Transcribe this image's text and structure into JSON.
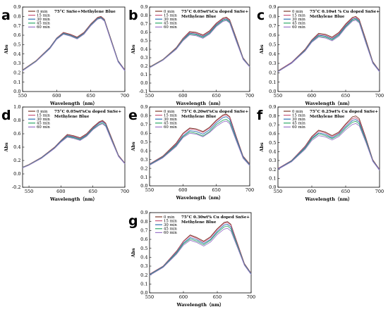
{
  "colors": {
    "0 min": "#7a3a2a",
    "15 min": "#c9567a",
    "30 min": "#2e6fb2",
    "45 min": "#2ea86a",
    "60 min": "#9a74c8"
  },
  "chart_data": [
    {
      "type": "line",
      "panel": "a",
      "title": "75°C SnSe+Methylene Blue",
      "title_lines": [
        "75°C SnSe+Methylene Blue"
      ],
      "xlabel": "Wavelength（nm）",
      "ylabel": "Abs",
      "xlim": [
        550,
        700
      ],
      "ylim": [
        0.0,
        0.9
      ],
      "xticks": [
        550,
        600,
        650,
        700
      ],
      "yticks": [
        0.0,
        0.1,
        0.2,
        0.3,
        0.4,
        0.5,
        0.6,
        0.7,
        0.8,
        0.9
      ],
      "ytick_labels": [
        "0.0",
        "0.1",
        "0.2",
        "0.3",
        "0.4",
        "0.5",
        "0.6",
        "0.7",
        "0.8",
        "0.9"
      ],
      "legend_position": "top-left",
      "x": [
        550,
        570,
        590,
        600,
        610,
        620,
        630,
        640,
        650,
        660,
        665,
        670,
        680,
        690,
        700
      ],
      "series": [
        {
          "name": "0 min",
          "values": [
            0.23,
            0.33,
            0.47,
            0.57,
            0.63,
            0.61,
            0.58,
            0.63,
            0.72,
            0.79,
            0.8,
            0.77,
            0.55,
            0.33,
            0.23
          ]
        },
        {
          "name": "15 min",
          "values": [
            0.23,
            0.33,
            0.47,
            0.57,
            0.625,
            0.605,
            0.575,
            0.625,
            0.715,
            0.785,
            0.795,
            0.765,
            0.545,
            0.33,
            0.23
          ]
        },
        {
          "name": "30 min",
          "values": [
            0.225,
            0.325,
            0.465,
            0.565,
            0.62,
            0.6,
            0.57,
            0.62,
            0.71,
            0.78,
            0.79,
            0.76,
            0.54,
            0.325,
            0.225
          ]
        },
        {
          "name": "45 min",
          "values": [
            0.225,
            0.325,
            0.46,
            0.56,
            0.615,
            0.595,
            0.565,
            0.615,
            0.705,
            0.775,
            0.785,
            0.755,
            0.535,
            0.32,
            0.22
          ]
        },
        {
          "name": "60 min",
          "values": [
            0.22,
            0.32,
            0.455,
            0.555,
            0.61,
            0.59,
            0.56,
            0.61,
            0.7,
            0.77,
            0.78,
            0.75,
            0.53,
            0.315,
            0.22
          ]
        }
      ]
    },
    {
      "type": "line",
      "panel": "b",
      "title": "75°C 0.05wt%Cu doped SnSe+ Methylene Blue",
      "title_lines": [
        "75°C 0.05wt%Cu doped SnSe+",
        "Methylene Blue"
      ],
      "xlabel": "Wavelength（nm）",
      "ylabel": "Abs",
      "xlim": [
        550,
        700
      ],
      "ylim": [
        -0.1,
        0.9
      ],
      "xticks": [
        550,
        600,
        650,
        700
      ],
      "yticks": [
        -0.1,
        0.0,
        0.1,
        0.2,
        0.3,
        0.4,
        0.5,
        0.6,
        0.7,
        0.8,
        0.9
      ],
      "ytick_labels": [
        "-0.1",
        "0.0",
        "0.1",
        "0.2",
        "0.3",
        "0.4",
        "0.5",
        "0.6",
        "0.7",
        "0.8",
        "0.9"
      ],
      "legend_position": "top-left",
      "x": [
        550,
        570,
        590,
        600,
        610,
        620,
        630,
        640,
        650,
        660,
        665,
        670,
        680,
        690,
        700
      ],
      "series": [
        {
          "name": "0 min",
          "values": [
            0.19,
            0.28,
            0.42,
            0.53,
            0.61,
            0.6,
            0.57,
            0.62,
            0.71,
            0.77,
            0.78,
            0.75,
            0.53,
            0.3,
            0.2
          ]
        },
        {
          "name": "15 min",
          "values": [
            0.19,
            0.28,
            0.415,
            0.525,
            0.6,
            0.59,
            0.56,
            0.61,
            0.7,
            0.76,
            0.77,
            0.74,
            0.52,
            0.295,
            0.2
          ]
        },
        {
          "name": "30 min",
          "values": [
            0.185,
            0.275,
            0.41,
            0.515,
            0.59,
            0.58,
            0.55,
            0.6,
            0.69,
            0.75,
            0.76,
            0.73,
            0.51,
            0.29,
            0.195
          ]
        },
        {
          "name": "45 min",
          "values": [
            0.185,
            0.275,
            0.405,
            0.51,
            0.58,
            0.57,
            0.54,
            0.59,
            0.68,
            0.74,
            0.75,
            0.72,
            0.5,
            0.285,
            0.195
          ]
        },
        {
          "name": "60 min",
          "values": [
            0.18,
            0.27,
            0.4,
            0.5,
            0.57,
            0.56,
            0.53,
            0.58,
            0.67,
            0.73,
            0.74,
            0.71,
            0.49,
            0.28,
            0.19
          ]
        }
      ]
    },
    {
      "type": "line",
      "panel": "c",
      "title": "75°C 0.10wt % Cu doped SnSe+ Methylene Blue",
      "title_lines": [
        "75°C 0.10wt % Cu doped SnSe+",
        "Methylene Blue"
      ],
      "xlabel": "Wavelength（nm）",
      "ylabel": "Abs",
      "xlim": [
        550,
        700
      ],
      "ylim": [
        0.0,
        0.9
      ],
      "xticks": [
        550,
        600,
        650,
        700
      ],
      "yticks": [
        0.0,
        0.1,
        0.2,
        0.3,
        0.4,
        0.5,
        0.6,
        0.7,
        0.8,
        0.9
      ],
      "ytick_labels": [
        "0.0",
        "0.1",
        "0.2",
        "0.3",
        "0.4",
        "0.5",
        "0.6",
        "0.7",
        "0.8",
        "0.9"
      ],
      "legend_position": "top-left",
      "x": [
        550,
        570,
        590,
        600,
        610,
        620,
        630,
        640,
        650,
        660,
        665,
        670,
        680,
        690,
        700
      ],
      "series": [
        {
          "name": "0 min",
          "values": [
            0.22,
            0.31,
            0.45,
            0.55,
            0.62,
            0.61,
            0.58,
            0.63,
            0.72,
            0.79,
            0.8,
            0.77,
            0.55,
            0.32,
            0.22
          ]
        },
        {
          "name": "15 min",
          "values": [
            0.22,
            0.31,
            0.445,
            0.545,
            0.61,
            0.6,
            0.57,
            0.62,
            0.71,
            0.78,
            0.79,
            0.76,
            0.54,
            0.315,
            0.22
          ]
        },
        {
          "name": "30 min",
          "values": [
            0.215,
            0.305,
            0.44,
            0.54,
            0.6,
            0.59,
            0.56,
            0.61,
            0.7,
            0.77,
            0.78,
            0.75,
            0.53,
            0.31,
            0.215
          ]
        },
        {
          "name": "45 min",
          "values": [
            0.215,
            0.3,
            0.435,
            0.53,
            0.59,
            0.58,
            0.55,
            0.6,
            0.69,
            0.76,
            0.77,
            0.74,
            0.52,
            0.305,
            0.21
          ]
        },
        {
          "name": "60 min",
          "values": [
            0.21,
            0.3,
            0.43,
            0.525,
            0.58,
            0.57,
            0.54,
            0.59,
            0.68,
            0.75,
            0.76,
            0.73,
            0.51,
            0.3,
            0.21
          ]
        }
      ]
    },
    {
      "type": "line",
      "panel": "d",
      "title": "75°C 0.05wt%Cu doped SnSe+ Methylene Blue",
      "title_lines": [
        "75°C 0.05wt%Cu doped SnSe+",
        "Methylene Blue"
      ],
      "xlabel": "Wavelength（nm）",
      "ylabel": "Abs",
      "xlim": [
        540,
        700
      ],
      "ylim": [
        -0.2,
        1.0
      ],
      "xticks": [
        550,
        600,
        650,
        700
      ],
      "yticks": [
        -0.2,
        0.0,
        0.2,
        0.4,
        0.6,
        0.8,
        1.0
      ],
      "ytick_labels": [
        "-0.2",
        "0.0",
        "0.2",
        "0.4",
        "0.6",
        "0.8",
        "1.0"
      ],
      "legend_position": "top-left",
      "x": [
        540,
        550,
        570,
        590,
        600,
        610,
        620,
        630,
        640,
        650,
        660,
        665,
        670,
        680,
        690,
        700
      ],
      "series": [
        {
          "name": "0 min",
          "values": [
            0.1,
            0.14,
            0.25,
            0.4,
            0.5,
            0.59,
            0.57,
            0.54,
            0.6,
            0.7,
            0.78,
            0.8,
            0.76,
            0.52,
            0.28,
            0.16
          ]
        },
        {
          "name": "15 min",
          "values": [
            0.1,
            0.14,
            0.25,
            0.395,
            0.495,
            0.58,
            0.56,
            0.53,
            0.59,
            0.69,
            0.77,
            0.79,
            0.75,
            0.51,
            0.275,
            0.16
          ]
        },
        {
          "name": "30 min",
          "values": [
            0.095,
            0.135,
            0.245,
            0.39,
            0.49,
            0.57,
            0.55,
            0.52,
            0.58,
            0.68,
            0.76,
            0.78,
            0.74,
            0.5,
            0.27,
            0.155
          ]
        },
        {
          "name": "45 min",
          "values": [
            0.095,
            0.135,
            0.24,
            0.385,
            0.48,
            0.56,
            0.54,
            0.51,
            0.57,
            0.67,
            0.74,
            0.76,
            0.72,
            0.49,
            0.265,
            0.15
          ]
        },
        {
          "name": "60 min",
          "values": [
            0.09,
            0.13,
            0.235,
            0.38,
            0.475,
            0.55,
            0.53,
            0.5,
            0.56,
            0.66,
            0.73,
            0.75,
            0.71,
            0.48,
            0.26,
            0.15
          ]
        }
      ]
    },
    {
      "type": "line",
      "panel": "e",
      "title": "75°C 0.20wt%Cu doped SnSe+ Methylene Blue",
      "title_lines": [
        "75°C 0.20wt%Cu doped SnSe+",
        "Methylene Blue"
      ],
      "xlabel": "Wavelength（nm）",
      "ylabel": "Abs",
      "xlim": [
        550,
        700
      ],
      "ylim": [
        0.0,
        0.9
      ],
      "xticks": [
        550,
        600,
        650,
        700
      ],
      "yticks": [
        0.0,
        0.1,
        0.2,
        0.3,
        0.4,
        0.5,
        0.6,
        0.7,
        0.8,
        0.9
      ],
      "ytick_labels": [
        "0.0",
        "0.1",
        "0.2",
        "0.3",
        "0.4",
        "0.5",
        "0.6",
        "0.7",
        "0.8",
        "0.9"
      ],
      "legend_position": "top-left",
      "x": [
        550,
        570,
        590,
        600,
        610,
        620,
        630,
        640,
        650,
        660,
        665,
        670,
        680,
        690,
        700
      ],
      "series": [
        {
          "name": "0 min",
          "values": [
            0.25,
            0.34,
            0.49,
            0.6,
            0.66,
            0.65,
            0.62,
            0.67,
            0.75,
            0.81,
            0.82,
            0.79,
            0.56,
            0.34,
            0.25
          ]
        },
        {
          "name": "15 min",
          "values": [
            0.25,
            0.335,
            0.48,
            0.59,
            0.65,
            0.64,
            0.61,
            0.66,
            0.74,
            0.8,
            0.81,
            0.78,
            0.55,
            0.335,
            0.245
          ]
        },
        {
          "name": "30 min",
          "values": [
            0.245,
            0.33,
            0.47,
            0.57,
            0.63,
            0.62,
            0.59,
            0.64,
            0.72,
            0.78,
            0.79,
            0.76,
            0.54,
            0.33,
            0.24
          ]
        },
        {
          "name": "45 min",
          "values": [
            0.24,
            0.325,
            0.46,
            0.56,
            0.615,
            0.6,
            0.57,
            0.62,
            0.7,
            0.75,
            0.76,
            0.73,
            0.52,
            0.32,
            0.235
          ]
        },
        {
          "name": "60 min",
          "values": [
            0.235,
            0.32,
            0.45,
            0.55,
            0.6,
            0.59,
            0.56,
            0.61,
            0.68,
            0.73,
            0.74,
            0.71,
            0.51,
            0.315,
            0.23
          ]
        }
      ]
    },
    {
      "type": "line",
      "panel": "f",
      "title": "75°C 0.25wt% Cu doped SnSe+ Methylene Blue",
      "title_lines": [
        "75°C 0.25wt% Cu doped SnSe+",
        "Methylene Blue"
      ],
      "xlabel": "Wavelength（nm）",
      "ylabel": "Abs",
      "xlim": [
        550,
        700
      ],
      "ylim": [
        0.0,
        0.9
      ],
      "xticks": [
        550,
        600,
        650,
        700
      ],
      "yticks": [
        0.0,
        0.1,
        0.2,
        0.3,
        0.4,
        0.5,
        0.6,
        0.7,
        0.8,
        0.9
      ],
      "ytick_labels": [
        "0.0",
        "0.1",
        "0.2",
        "0.3",
        "0.4",
        "0.5",
        "0.6",
        "0.7",
        "0.8",
        "0.9"
      ],
      "legend_position": "top-left",
      "x": [
        550,
        570,
        590,
        600,
        610,
        620,
        630,
        640,
        650,
        660,
        665,
        670,
        680,
        690,
        700
      ],
      "series": [
        {
          "name": "0 min",
          "values": [
            0.21,
            0.3,
            0.46,
            0.57,
            0.64,
            0.62,
            0.58,
            0.62,
            0.71,
            0.79,
            0.8,
            0.77,
            0.55,
            0.31,
            0.2
          ]
        },
        {
          "name": "15 min",
          "values": [
            0.21,
            0.3,
            0.455,
            0.56,
            0.63,
            0.61,
            0.57,
            0.61,
            0.7,
            0.77,
            0.78,
            0.75,
            0.54,
            0.305,
            0.2
          ]
        },
        {
          "name": "30 min",
          "values": [
            0.205,
            0.295,
            0.445,
            0.55,
            0.61,
            0.595,
            0.555,
            0.6,
            0.68,
            0.75,
            0.76,
            0.73,
            0.53,
            0.3,
            0.195
          ]
        },
        {
          "name": "45 min",
          "values": [
            0.2,
            0.29,
            0.435,
            0.54,
            0.6,
            0.58,
            0.545,
            0.585,
            0.665,
            0.73,
            0.74,
            0.71,
            0.515,
            0.295,
            0.19
          ]
        },
        {
          "name": "60 min",
          "values": [
            0.2,
            0.285,
            0.425,
            0.525,
            0.58,
            0.565,
            0.53,
            0.57,
            0.645,
            0.705,
            0.715,
            0.69,
            0.5,
            0.29,
            0.19
          ]
        }
      ]
    },
    {
      "type": "line",
      "panel": "g",
      "title": "75°C 0.30wt% Cu doped SnSe+ Methylene Blue",
      "title_lines": [
        "75°C 0.30wt% Cu doped SnSe+",
        "Methylene Blue"
      ],
      "xlabel": "Wavelength（nm）",
      "ylabel": "Abs",
      "xlim": [
        550,
        700
      ],
      "ylim": [
        0.0,
        0.9
      ],
      "xticks": [
        550,
        600,
        650,
        700
      ],
      "yticks": [
        0.0,
        0.1,
        0.2,
        0.3,
        0.4,
        0.5,
        0.6,
        0.7,
        0.8,
        0.9
      ],
      "ytick_labels": [
        "0.0",
        "0.1",
        "0.2",
        "0.3",
        "0.4",
        "0.5",
        "0.6",
        "0.7",
        "0.8",
        "0.9"
      ],
      "legend_position": "top-left",
      "x": [
        550,
        570,
        590,
        600,
        610,
        620,
        630,
        640,
        650,
        660,
        665,
        670,
        680,
        690,
        700
      ],
      "series": [
        {
          "name": "0 min",
          "values": [
            0.21,
            0.3,
            0.47,
            0.58,
            0.65,
            0.62,
            0.58,
            0.63,
            0.72,
            0.79,
            0.8,
            0.77,
            0.55,
            0.33,
            0.22
          ]
        },
        {
          "name": "15 min",
          "values": [
            0.21,
            0.3,
            0.465,
            0.575,
            0.64,
            0.61,
            0.57,
            0.62,
            0.71,
            0.78,
            0.79,
            0.76,
            0.545,
            0.325,
            0.22
          ]
        },
        {
          "name": "30 min",
          "values": [
            0.205,
            0.295,
            0.455,
            0.56,
            0.62,
            0.595,
            0.555,
            0.6,
            0.69,
            0.76,
            0.77,
            0.74,
            0.53,
            0.32,
            0.215
          ]
        },
        {
          "name": "45 min",
          "values": [
            0.2,
            0.29,
            0.445,
            0.55,
            0.605,
            0.58,
            0.54,
            0.59,
            0.675,
            0.74,
            0.75,
            0.72,
            0.52,
            0.315,
            0.21
          ]
        },
        {
          "name": "60 min",
          "values": [
            0.195,
            0.285,
            0.435,
            0.535,
            0.59,
            0.565,
            0.525,
            0.57,
            0.655,
            0.715,
            0.725,
            0.695,
            0.505,
            0.31,
            0.205
          ]
        }
      ]
    }
  ]
}
